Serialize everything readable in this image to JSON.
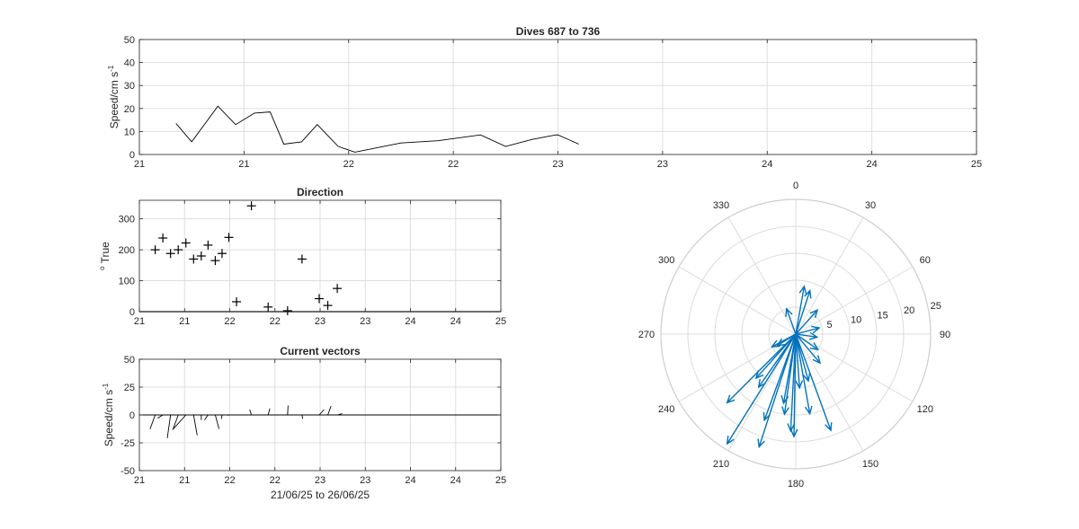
{
  "chart_data": [
    {
      "type": "line",
      "title": "Dives 687 to 736",
      "ylabel": "Speed/cm s",
      "ylabel_sup": "-1",
      "x_tick_labels": [
        "21",
        "21",
        "22",
        "22",
        "23",
        "23",
        "24",
        "24",
        "25"
      ],
      "ylim": [
        0,
        50
      ],
      "y_ticks": [
        0,
        10,
        20,
        30,
        40,
        50
      ],
      "grid": true,
      "series": [
        {
          "color": "#000000",
          "x": [
            0.35,
            0.5,
            0.75,
            0.92,
            1.1,
            1.25,
            1.38,
            1.55,
            1.7,
            1.9,
            2.06,
            2.5,
            2.85,
            3.26,
            3.5,
            3.75,
            3.98
          ],
          "y": [
            13.5,
            5.5,
            21,
            13,
            18,
            18.5,
            4.5,
            5.5,
            13,
            3.5,
            1,
            5,
            6,
            8.5,
            3.5,
            6.5,
            8.5
          ]
        }
      ],
      "series_tail": {
        "x": [
          4.0,
          4.2
        ],
        "y": [
          8.5,
          4.5
        ]
      }
    },
    {
      "type": "scatter",
      "title": "Direction",
      "ylabel": "True",
      "ylabel_prefix": "o",
      "x_tick_labels": [
        "21",
        "21",
        "22",
        "22",
        "23",
        "23",
        "24",
        "24",
        "25"
      ],
      "ylim": [
        0,
        360
      ],
      "y_ticks": [
        0,
        100,
        200,
        300
      ],
      "grid": true,
      "marker": "+",
      "points": [
        [
          0.35,
          200
        ],
        [
          0.52,
          238
        ],
        [
          0.69,
          188
        ],
        [
          0.86,
          200
        ],
        [
          1.03,
          222
        ],
        [
          1.2,
          170
        ],
        [
          1.37,
          180
        ],
        [
          1.52,
          215
        ],
        [
          1.68,
          165
        ],
        [
          1.83,
          188
        ],
        [
          1.98,
          240
        ],
        [
          2.15,
          32
        ],
        [
          2.48,
          342
        ],
        [
          2.85,
          15
        ],
        [
          3.28,
          3
        ],
        [
          3.6,
          170
        ],
        [
          3.98,
          42
        ],
        [
          4.17,
          20
        ],
        [
          4.38,
          75
        ]
      ]
    },
    {
      "type": "quiver",
      "title": "Current vectors",
      "ylabel": "Speed/cm s",
      "ylabel_sup": "-1",
      "xlabel": "21/06/25 to 26/06/25",
      "x_tick_labels": [
        "21",
        "21",
        "22",
        "22",
        "23",
        "23",
        "24",
        "24",
        "25"
      ],
      "ylim": [
        -50,
        50
      ],
      "y_ticks": [
        -50,
        -25,
        0,
        25,
        50
      ],
      "grid": true,
      "vectors": [
        {
          "x": 0.35,
          "speed": 13.5,
          "dir": 200
        },
        {
          "x": 0.52,
          "speed": 5.5,
          "dir": 238
        },
        {
          "x": 0.69,
          "speed": 21,
          "dir": 188
        },
        {
          "x": 0.86,
          "speed": 13,
          "dir": 200
        },
        {
          "x": 1.03,
          "speed": 18,
          "dir": 222
        },
        {
          "x": 1.2,
          "speed": 18.5,
          "dir": 170
        },
        {
          "x": 1.37,
          "speed": 4.5,
          "dir": 180
        },
        {
          "x": 1.52,
          "speed": 5.5,
          "dir": 215
        },
        {
          "x": 1.68,
          "speed": 13,
          "dir": 165
        },
        {
          "x": 1.83,
          "speed": 3.5,
          "dir": 188
        },
        {
          "x": 1.98,
          "speed": 1,
          "dir": 240
        },
        {
          "x": 2.48,
          "speed": 5,
          "dir": 342
        },
        {
          "x": 2.85,
          "speed": 6,
          "dir": 15
        },
        {
          "x": 3.28,
          "speed": 8.5,
          "dir": 3
        },
        {
          "x": 3.6,
          "speed": 3.5,
          "dir": 170
        },
        {
          "x": 3.98,
          "speed": 6.5,
          "dir": 42
        },
        {
          "x": 4.17,
          "speed": 8.5,
          "dir": 20
        },
        {
          "x": 4.38,
          "speed": 4.5,
          "dir": 75
        }
      ]
    },
    {
      "type": "polar-compass",
      "theta_tick_labels": [
        "0",
        "30",
        "60",
        "90",
        "120",
        "150",
        "180",
        "210",
        "240",
        "270",
        "300",
        "330"
      ],
      "r_tick_labels": [
        "5",
        "10",
        "15",
        "20",
        "25"
      ],
      "rlim": [
        0,
        25
      ],
      "arrow_color": "#0072BD",
      "arrows": [
        {
          "dir": 225,
          "speed": 18
        },
        {
          "dir": 212,
          "speed": 24
        },
        {
          "dir": 200,
          "speed": 17
        },
        {
          "dir": 198,
          "speed": 22
        },
        {
          "dir": 190,
          "speed": 13
        },
        {
          "dir": 188,
          "speed": 15
        },
        {
          "dir": 183,
          "speed": 18
        },
        {
          "dir": 181,
          "speed": 19
        },
        {
          "dir": 176,
          "speed": 10
        },
        {
          "dir": 170,
          "speed": 15
        },
        {
          "dir": 160,
          "speed": 19
        },
        {
          "dir": 165,
          "speed": 9
        },
        {
          "dir": 222,
          "speed": 11
        },
        {
          "dir": 215,
          "speed": 12
        },
        {
          "dir": 238,
          "speed": 4
        },
        {
          "dir": 242,
          "speed": 5
        },
        {
          "dir": 10,
          "speed": 9
        },
        {
          "dir": 18,
          "speed": 8.5
        },
        {
          "dir": 340,
          "speed": 5
        },
        {
          "dir": 42,
          "speed": 6
        },
        {
          "dir": 75,
          "speed": 4.5
        },
        {
          "dir": 98,
          "speed": 4
        },
        {
          "dir": 140,
          "speed": 7
        },
        {
          "dir": 125,
          "speed": 5
        }
      ]
    }
  ]
}
